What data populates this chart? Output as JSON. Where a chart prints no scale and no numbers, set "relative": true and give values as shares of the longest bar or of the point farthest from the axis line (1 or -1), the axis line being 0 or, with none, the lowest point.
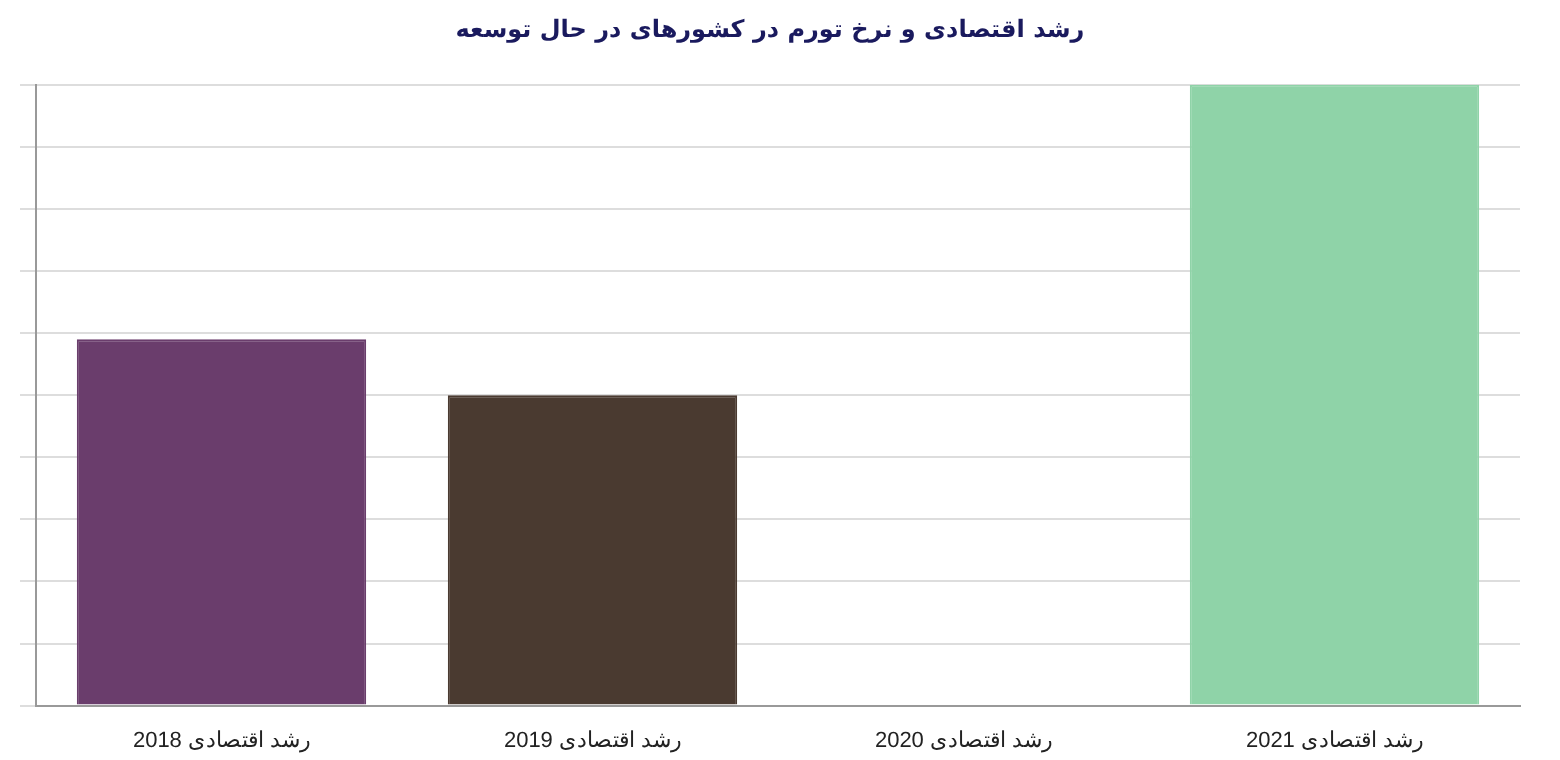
{
  "chart_data": {
    "type": "bar",
    "title": "رشد اقتصادی و نرخ تورم در کشورهای در حال توسعه",
    "relative": true,
    "grid": "y",
    "categories": [
      "رشد اقتصادی 2018",
      "رشد اقتصادی 2019",
      "رشد اقتصادی 2020",
      "رشد اقتصادی 2021"
    ],
    "values": [
      0.59,
      0.5,
      0,
      1
    ],
    "colors": [
      "#6a3d6c",
      "#4a3a30",
      "#c0c0c0",
      "#8fd3a8"
    ]
  }
}
